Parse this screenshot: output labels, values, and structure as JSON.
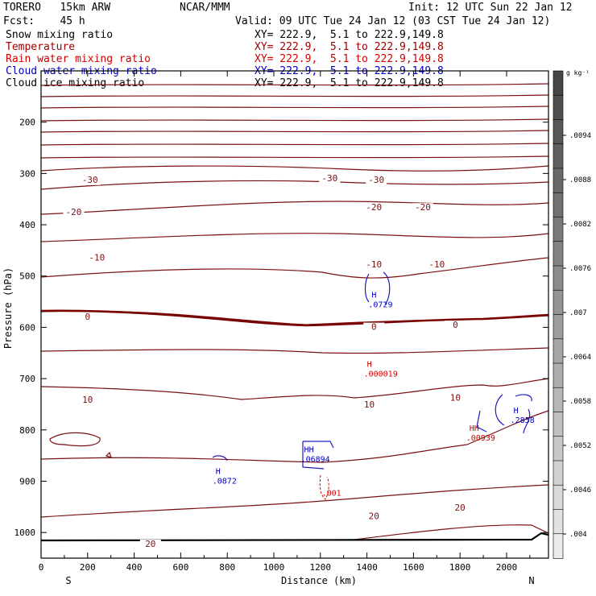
{
  "header": {
    "model": "TORERO   15km ARW",
    "center": "NCAR/MMM",
    "init": "Init: 12 UTC Sun 22 Jan 12",
    "fcst": "Fcst:    45 h",
    "valid": "Valid: 09 UTC Tue 24 Jan 12 (03 CST Tue 24 Jan 12)"
  },
  "legend": [
    {
      "label": "Snow mixing ratio",
      "color": "#000000",
      "xy": "XY= 222.9,  5.1 to 222.9,149.8"
    },
    {
      "label": "Temperature",
      "color": "#a00000",
      "xy": "XY= 222.9,  5.1 to 222.9,149.8"
    },
    {
      "label": "Rain water mixing ratio",
      "color": "#d00000",
      "xy": "XY= 222.9,  5.1 to 222.9,149.8"
    },
    {
      "label": "Cloud water mixing ratio",
      "color": "#0000c0",
      "xy": "XY= 222.9,  5.1 to 222.9,149.8"
    },
    {
      "label": "Cloud ice mixing ratio",
      "color": "#000000",
      "xy": "XY= 222.9,  5.1 to 222.9,149.8"
    }
  ],
  "chart_data": {
    "type": "contour-cross-section",
    "xlabel": "Distance (km)",
    "ylabel": "Pressure (hPa)",
    "xlim": [
      0,
      2180
    ],
    "ylim": [
      1050,
      100
    ],
    "x_ticks": [
      0,
      200,
      400,
      600,
      800,
      1000,
      1200,
      1400,
      1600,
      1800,
      2000
    ],
    "y_ticks": [
      200,
      300,
      400,
      500,
      600,
      700,
      800,
      900,
      1000
    ],
    "endpoints": {
      "left": "S",
      "right": "N"
    },
    "colorbar": {
      "unit": "g kg⁻¹",
      "ticks": [
        ".0094",
        ".0088",
        ".0082",
        ".0076",
        ".007",
        ".0064",
        ".0058",
        ".0052",
        ".0046",
        ".004"
      ]
    },
    "temperature_labels": [
      {
        "text": "-30",
        "x": 210,
        "p": 318
      },
      {
        "text": "-30",
        "x": 1240,
        "p": 315
      },
      {
        "text": "-30",
        "x": 1440,
        "p": 318
      },
      {
        "text": "-20",
        "x": 140,
        "p": 381
      },
      {
        "text": "-20",
        "x": 1430,
        "p": 372
      },
      {
        "text": "-20",
        "x": 1640,
        "p": 372
      },
      {
        "text": "-10",
        "x": 240,
        "p": 470
      },
      {
        "text": "-10",
        "x": 1430,
        "p": 483
      },
      {
        "text": "-10",
        "x": 1700,
        "p": 483
      },
      {
        "text": "0",
        "x": 200,
        "p": 585
      },
      {
        "text": "0",
        "x": 1430,
        "p": 605
      },
      {
        "text": "0",
        "x": 1780,
        "p": 601
      },
      {
        "text": "10",
        "x": 200,
        "p": 747
      },
      {
        "text": "10",
        "x": 1410,
        "p": 756
      },
      {
        "text": "10",
        "x": 1780,
        "p": 743
      },
      {
        "text": "20",
        "x": 470,
        "p": 1028
      },
      {
        "text": "20",
        "x": 1430,
        "p": 974
      },
      {
        "text": "20",
        "x": 1800,
        "p": 957
      }
    ],
    "maxima_labels": [
      {
        "mark": "H",
        "value": ".0729",
        "x": 1420,
        "p": 561,
        "series": "Cloud water mixing ratio"
      },
      {
        "mark": "H",
        "value": ".000019",
        "x": 1400,
        "p": 696,
        "series": "Rain water mixing ratio"
      },
      {
        "mark": "H",
        "value": ".0872",
        "x": 750,
        "p": 905,
        "series": "Cloud water mixing ratio"
      },
      {
        "mark": "HH",
        "value": ".06894",
        "x": 1130,
        "p": 862,
        "series": "Cloud water mixing ratio"
      },
      {
        "mark": "HH",
        "value": ".00939",
        "x": 1840,
        "p": 821,
        "series": "Rain water mixing ratio"
      },
      {
        "mark": "H",
        "value": ".2858",
        "x": 2030,
        "p": 786,
        "series": "Cloud water mixing ratio"
      },
      {
        "mark": "",
        "value": ".001",
        "x": 1220,
        "p": 928,
        "series": "Rain water mixing ratio"
      }
    ]
  }
}
